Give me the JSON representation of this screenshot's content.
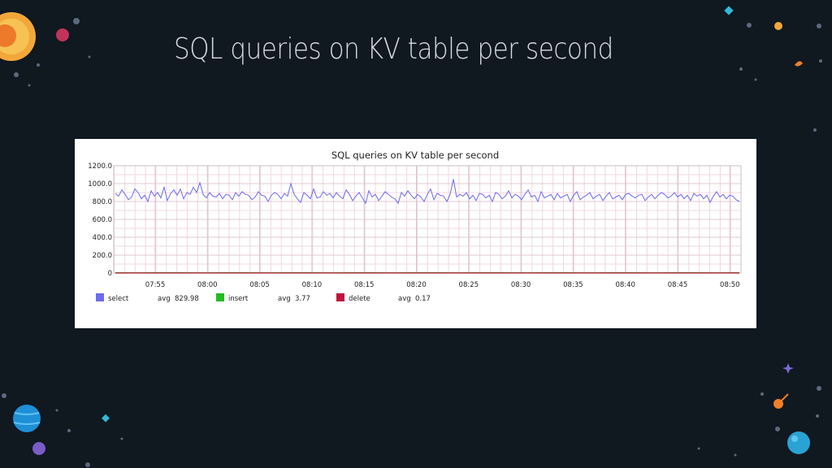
{
  "slide": {
    "title": "SQL queries on KV table per second"
  },
  "chart_data": {
    "type": "line",
    "title": "SQL queries on KV table per second",
    "xlabel": "",
    "ylabel": "",
    "ylim": [
      0,
      1200
    ],
    "y_ticks": [
      "1200.0",
      "1000.0",
      "800.0",
      "600.0",
      "400.0",
      "200.0",
      "0"
    ],
    "x_ticks": [
      "07:55",
      "08:00",
      "08:05",
      "08:10",
      "08:15",
      "08:20",
      "08:25",
      "08:30",
      "08:35",
      "08:40",
      "08:45",
      "08:50"
    ],
    "grid": true,
    "legend_position": "bottom",
    "series": [
      {
        "name": "select",
        "color": "#6b6bf0",
        "avg_label": "avg",
        "avg_value": "829.98",
        "values": [
          890,
          860,
          930,
          880,
          820,
          850,
          940,
          900,
          830,
          870,
          800,
          920,
          860,
          900,
          840,
          960,
          810,
          890,
          930,
          870,
          940,
          830,
          900,
          880,
          960,
          900,
          1010,
          880,
          840,
          900,
          860,
          850,
          890,
          830,
          880,
          870,
          820,
          900,
          860,
          910,
          880,
          870,
          820,
          850,
          910,
          870,
          860,
          800,
          870,
          900,
          880,
          830,
          890,
          860,
          1000,
          880,
          830,
          790,
          900,
          870,
          830,
          940,
          840,
          850,
          910,
          870,
          890,
          840,
          900,
          860,
          830,
          930,
          880,
          810,
          860,
          900,
          840,
          780,
          920,
          850,
          880,
          810,
          860,
          910,
          880,
          850,
          830,
          780,
          900,
          860,
          920,
          870,
          830,
          880,
          850,
          800,
          880,
          940,
          820,
          890,
          870,
          860,
          800,
          880,
          1050,
          850,
          880,
          860,
          900,
          830,
          870,
          810,
          890,
          880,
          840,
          870,
          800,
          900,
          880,
          830,
          860,
          920,
          840,
          880,
          860,
          820,
          880,
          930,
          850,
          870,
          800,
          910,
          840,
          860,
          880,
          820,
          890,
          840,
          860,
          880,
          800,
          870,
          910,
          820,
          850,
          870,
          900,
          830,
          860,
          880,
          810,
          860,
          900,
          830,
          850,
          870,
          820,
          880,
          890,
          860,
          840,
          870,
          880,
          810,
          850,
          880,
          830,
          870,
          900,
          880,
          840,
          860,
          900,
          850,
          880,
          830,
          870,
          810,
          890,
          860,
          880,
          830,
          870,
          790,
          860,
          910,
          850,
          880,
          830,
          870,
          860,
          820,
          800
        ],
        "x_start_minute": 0,
        "x_end_minute": 60
      },
      {
        "name": "insert",
        "color": "#22bb22",
        "avg_label": "avg",
        "avg_value": "3.77",
        "values": [
          4,
          3,
          4,
          4,
          3,
          4,
          4,
          3,
          4,
          4,
          3,
          4,
          4,
          3,
          4,
          4,
          3,
          4,
          4,
          3,
          4,
          4,
          3,
          4,
          4,
          3,
          4,
          4,
          3,
          4
        ]
      },
      {
        "name": "delete",
        "color": "#c0143c",
        "avg_label": "avg",
        "avg_value": "0.17",
        "values": [
          0,
          0,
          0,
          0,
          0,
          0,
          0,
          0,
          0,
          0,
          0,
          0,
          0,
          0,
          0,
          0,
          0,
          0,
          0,
          0,
          0,
          0,
          0,
          0,
          0,
          0,
          0,
          0,
          0,
          0
        ]
      }
    ]
  }
}
